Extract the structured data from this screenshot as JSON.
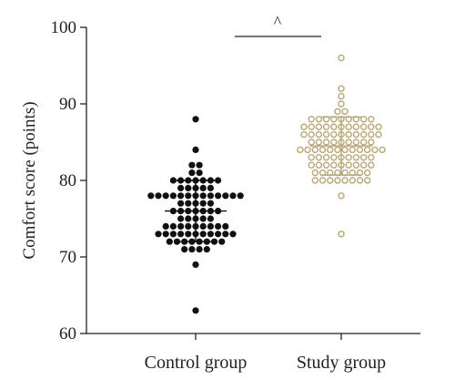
{
  "chart_data": {
    "type": "scatter",
    "subtype": "dot-strip",
    "ylabel": "Comfort score (points)",
    "xlabel": "",
    "ylim": [
      60,
      100
    ],
    "yticks": [
      60,
      70,
      80,
      90,
      100
    ],
    "categories": [
      "Control group",
      "Study group"
    ],
    "annotation": "^",
    "series": [
      {
        "category": "Control group",
        "color": "#111111",
        "marker": "filled-circle",
        "mean": 76,
        "sd": 4,
        "values": [
          88,
          84,
          82,
          82,
          81,
          81,
          80,
          80,
          80,
          80,
          80,
          80,
          80,
          79,
          79,
          79,
          79,
          79,
          78,
          78,
          78,
          78,
          78,
          78,
          78,
          78,
          78,
          78,
          78,
          78,
          78,
          77,
          77,
          77,
          77,
          77,
          76,
          76,
          76,
          76,
          76,
          76,
          76,
          75,
          75,
          75,
          75,
          75,
          74,
          74,
          74,
          74,
          74,
          74,
          74,
          74,
          74,
          73,
          73,
          73,
          73,
          73,
          73,
          73,
          73,
          73,
          73,
          73,
          72,
          72,
          72,
          72,
          72,
          72,
          72,
          72,
          71,
          71,
          71,
          71,
          69,
          63
        ]
      },
      {
        "category": "Study group",
        "color": "#b9a778",
        "marker": "open-circle",
        "mean": 84.5,
        "sd": 3.8,
        "values": [
          96,
          92,
          91,
          90,
          89,
          89,
          88,
          88,
          88,
          88,
          88,
          88,
          88,
          88,
          88,
          87,
          87,
          87,
          87,
          87,
          87,
          87,
          87,
          87,
          87,
          87,
          86,
          86,
          86,
          86,
          86,
          86,
          86,
          86,
          86,
          86,
          86,
          85,
          85,
          85,
          85,
          85,
          85,
          85,
          85,
          85,
          84,
          84,
          84,
          84,
          84,
          84,
          84,
          84,
          84,
          84,
          84,
          84,
          83,
          83,
          83,
          83,
          83,
          83,
          83,
          83,
          83,
          82,
          82,
          82,
          82,
          82,
          82,
          82,
          82,
          82,
          81,
          81,
          81,
          81,
          81,
          81,
          81,
          81,
          80,
          80,
          80,
          80,
          80,
          80,
          80,
          80,
          78,
          73
        ]
      }
    ]
  }
}
